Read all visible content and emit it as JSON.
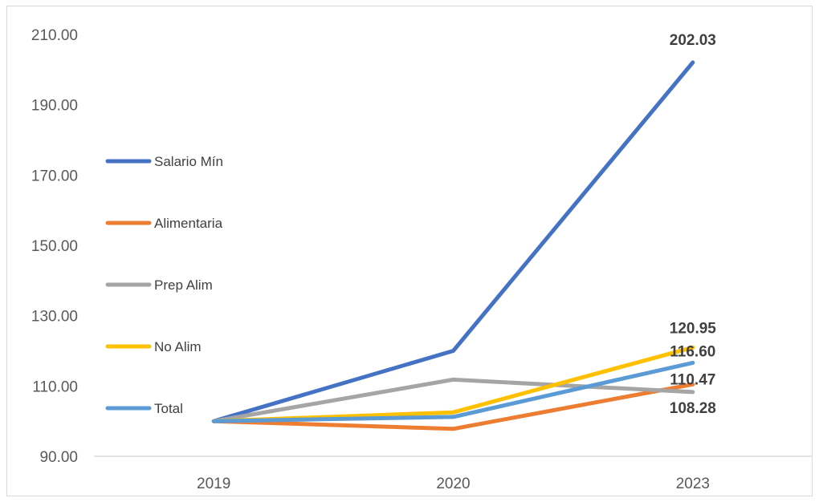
{
  "chart_data": {
    "type": "line",
    "categories": [
      "2019",
      "2020",
      "2023"
    ],
    "ylim": [
      90,
      210
    ],
    "yticks": [
      "90.00",
      "110.00",
      "130.00",
      "150.00",
      "170.00",
      "190.00",
      "210.00"
    ],
    "grid": false,
    "legend_position": "left",
    "series": [
      {
        "name": "Salario Mín",
        "color": "#4472c4",
        "values": [
          100,
          120,
          202.03
        ],
        "end_label": "202.03"
      },
      {
        "name": "Alimentaria",
        "color": "#ed7d31",
        "values": [
          100,
          97.8,
          110.47
        ],
        "end_label": "110.47"
      },
      {
        "name": "Prep Alim",
        "color": "#a5a5a5",
        "values": [
          100,
          111.8,
          108.28
        ],
        "end_label": "108.28"
      },
      {
        "name": "No Alim",
        "color": "#ffc000",
        "values": [
          100,
          102.5,
          120.95
        ],
        "end_label": "120.95"
      },
      {
        "name": "Total",
        "color": "#5b9bd5",
        "values": [
          100,
          101.2,
          116.6
        ],
        "end_label": "116.60"
      }
    ]
  }
}
